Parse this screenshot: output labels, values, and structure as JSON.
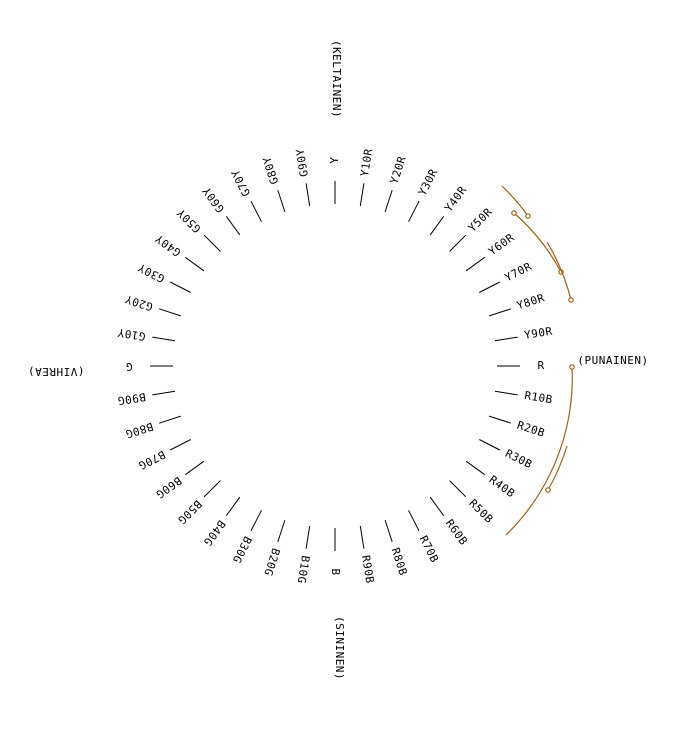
{
  "hue_labels": [
    "Y",
    "Y10R",
    "Y20R",
    "Y30R",
    "Y40R",
    "Y50R",
    "Y60R",
    "Y70R",
    "Y80R",
    "Y90R",
    "R",
    "R10B",
    "R20B",
    "R30B",
    "R40B",
    "R50B",
    "R60B",
    "R70B",
    "R80B",
    "R90B",
    "B",
    "B10G",
    "B20G",
    "B30G",
    "B40G",
    "B50G",
    "B60G",
    "B70G",
    "B80G",
    "B90G",
    "G",
    "G10Y",
    "G20Y",
    "G30Y",
    "G40Y",
    "G50Y",
    "G60Y",
    "G70Y",
    "G80Y",
    "G90Y"
  ],
  "primary_names": {
    "yellow": "(KELTAINEN)",
    "red": "(PUNAINEN)",
    "blue": "(SININEN)",
    "green": "(VIHREA)"
  },
  "colors": {
    "lines": "#000000",
    "arc_accent": "#a0601a"
  }
}
